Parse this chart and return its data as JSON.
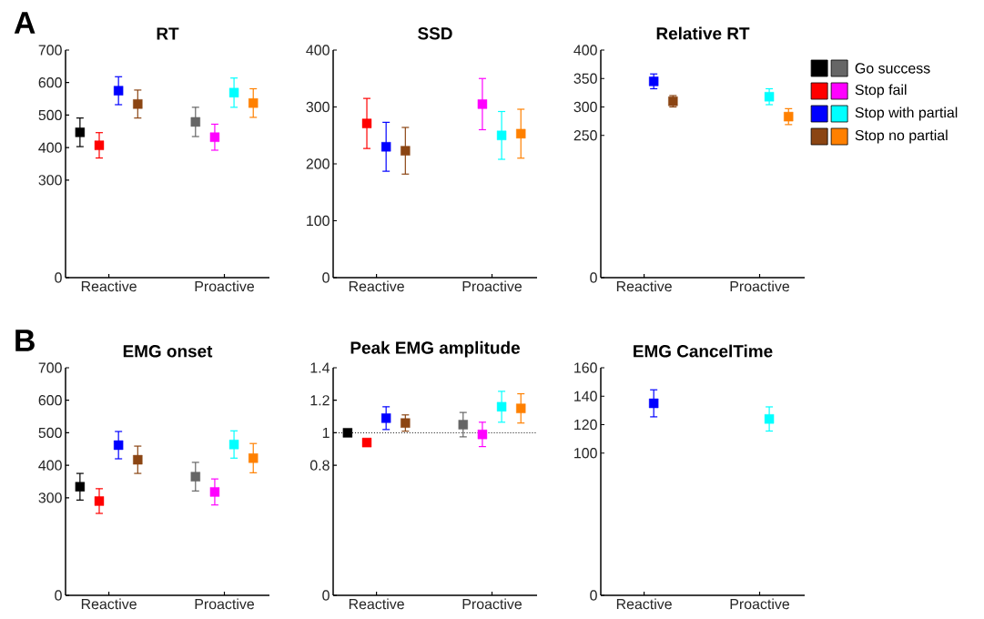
{
  "chart_data": [
    {
      "type": "scatter",
      "title": "RT",
      "annotations": [
        "A"
      ],
      "categories": [
        "Reactive",
        "Proactive"
      ],
      "ylim": [
        0,
        700
      ],
      "yticks": [
        0,
        300,
        400,
        500,
        600,
        700
      ],
      "marker": "square",
      "series": [
        {
          "colors": [
            "#000000",
            "#666666"
          ],
          "values": [
            447,
            479
          ],
          "errors": [
            44,
            45
          ]
        },
        {
          "colors": [
            "#ff0000",
            "#ff00ff"
          ],
          "values": [
            407,
            432
          ],
          "errors": [
            39,
            40
          ]
        },
        {
          "colors": [
            "#0000ff",
            "#00ffff"
          ],
          "values": [
            575,
            569
          ],
          "errors": [
            43,
            45
          ]
        },
        {
          "colors": [
            "#8b4513",
            "#ff8000"
          ],
          "values": [
            534,
            537
          ],
          "errors": [
            43,
            44
          ]
        }
      ]
    },
    {
      "type": "scatter",
      "title": "SSD",
      "categories": [
        "Reactive",
        "Proactive"
      ],
      "ylim": [
        0,
        400
      ],
      "yticks": [
        0,
        100,
        200,
        300,
        400
      ],
      "marker": "square",
      "series": [
        {
          "values": [
            null,
            null
          ]
        },
        {
          "colors": [
            "#ff0000",
            "#ff00ff"
          ],
          "values": [
            271,
            305
          ],
          "errors": [
            44,
            45
          ]
        },
        {
          "colors": [
            "#0000ff",
            "#00ffff"
          ],
          "values": [
            230,
            250
          ],
          "errors": [
            43,
            42
          ]
        },
        {
          "colors": [
            "#8b4513",
            "#ff8000"
          ],
          "values": [
            223,
            253
          ],
          "errors": [
            41,
            43
          ]
        }
      ]
    },
    {
      "type": "scatter",
      "title": "Relative RT",
      "categories": [
        "Reactive",
        "Proactive"
      ],
      "ylim": [
        0,
        400
      ],
      "yticks": [
        0,
        250,
        300,
        350,
        400
      ],
      "marker": "square",
      "legend": "right",
      "series": [
        {
          "name": "Go success",
          "colors": [
            "#000000",
            "#666666"
          ],
          "values": [
            null,
            null
          ]
        },
        {
          "name": "Stop fail",
          "colors": [
            "#ff0000",
            "#ff00ff"
          ],
          "values": [
            null,
            null
          ]
        },
        {
          "name": "Stop with partial",
          "colors": [
            "#0000ff",
            "#00ffff"
          ],
          "values": [
            345,
            318
          ],
          "errors": [
            13,
            14
          ]
        },
        {
          "name": "Stop no partial",
          "colors": [
            "#8b4513",
            "#ff8000"
          ],
          "values": [
            310,
            283
          ],
          "errors": [
            10,
            14
          ]
        }
      ]
    },
    {
      "type": "scatter",
      "title": "EMG onset",
      "annotations": [
        "B"
      ],
      "categories": [
        "Reactive",
        "Proactive"
      ],
      "ylim": [
        0,
        700
      ],
      "yticks": [
        0,
        300,
        400,
        500,
        600,
        700
      ],
      "marker": "square",
      "series": [
        {
          "colors": [
            "#000000",
            "#666666"
          ],
          "values": [
            334,
            365
          ],
          "errors": [
            41,
            44
          ]
        },
        {
          "colors": [
            "#ff0000",
            "#ff00ff"
          ],
          "values": [
            290,
            318
          ],
          "errors": [
            38,
            40
          ]
        },
        {
          "colors": [
            "#0000ff",
            "#00ffff"
          ],
          "values": [
            462,
            464
          ],
          "errors": [
            42,
            42
          ]
        },
        {
          "colors": [
            "#8b4513",
            "#ff8000"
          ],
          "values": [
            417,
            422
          ],
          "errors": [
            42,
            45
          ]
        }
      ]
    },
    {
      "type": "scatter",
      "title": "Peak EMG amplitude",
      "categories": [
        "Reactive",
        "Proactive"
      ],
      "ylim": [
        0,
        1.4
      ],
      "yticks": [
        0,
        0.8,
        1,
        1.2,
        1.4
      ],
      "marker": "square",
      "ref_lines": [
        {
          "axis": "y",
          "value": 1,
          "line_style": "dotted",
          "color": "#000000"
        }
      ],
      "series": [
        {
          "colors": [
            "#000000",
            "#666666"
          ],
          "values": [
            1.0,
            1.05
          ],
          "errors": [
            null,
            0.075
          ]
        },
        {
          "colors": [
            "#ff0000",
            "#ff00ff"
          ],
          "values": [
            0.94,
            0.99
          ],
          "errors": [
            null,
            0.075
          ]
        },
        {
          "colors": [
            "#0000ff",
            "#00ffff"
          ],
          "values": [
            1.09,
            1.16
          ],
          "errors": [
            0.07,
            0.095
          ]
        },
        {
          "colors": [
            "#8b4513",
            "#ff8000"
          ],
          "values": [
            1.06,
            1.15
          ],
          "errors": [
            0.05,
            0.09
          ]
        }
      ]
    },
    {
      "type": "scatter",
      "title": "EMG CancelTime",
      "categories": [
        "Reactive",
        "Proactive"
      ],
      "ylim": [
        0,
        160
      ],
      "yticks": [
        0,
        100,
        120,
        140,
        160
      ],
      "marker": "square",
      "series": [
        {
          "values": [
            null,
            null
          ]
        },
        {
          "values": [
            null,
            null
          ]
        },
        {
          "colors": [
            "#0000ff",
            "#00ffff"
          ],
          "values": [
            135,
            124
          ],
          "errors": [
            9.5,
            8.5
          ]
        },
        {
          "values": [
            null,
            null
          ]
        }
      ]
    }
  ]
}
